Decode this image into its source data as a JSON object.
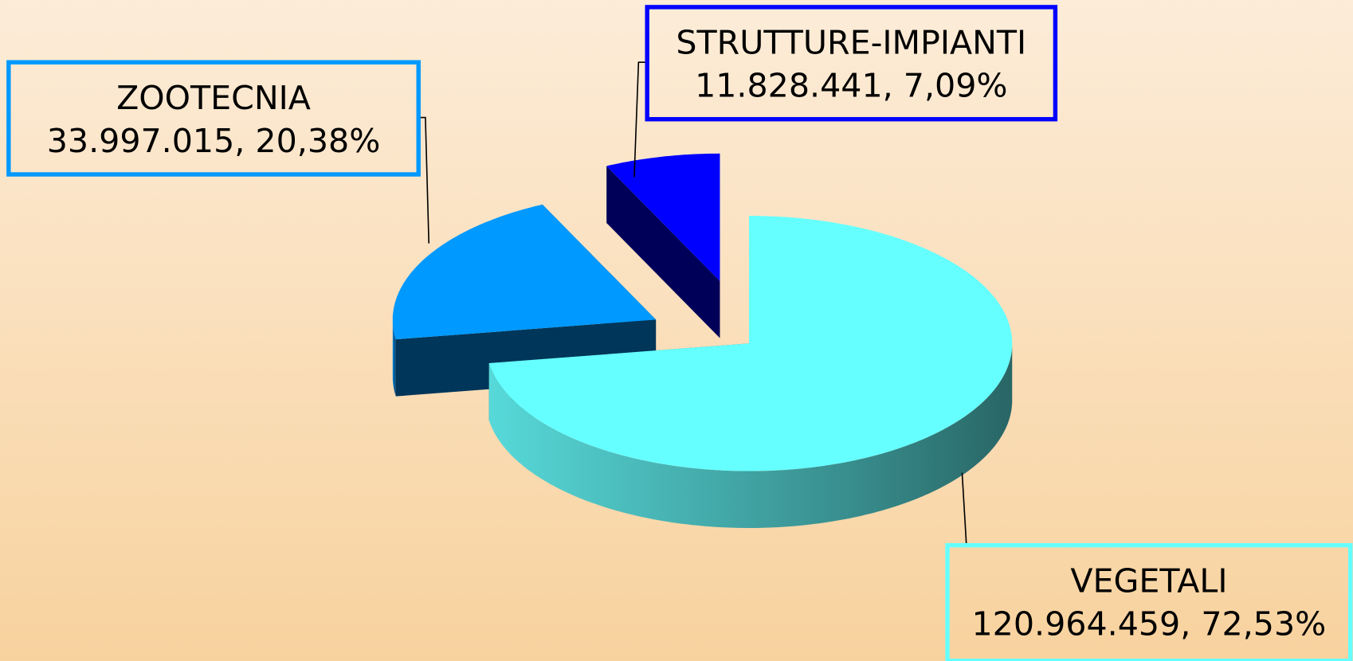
{
  "chart_data": {
    "type": "pie",
    "categories": [
      "VEGETALI",
      "ZOOTECNIA",
      "STRUTTURE-IMPIANTI"
    ],
    "values": [
      120964459,
      33997015,
      11828441
    ],
    "value_labels": [
      "120.964.459, 72,53%",
      "33.997.015, 20,38%",
      "11.828.441, 7,09%"
    ],
    "colors": [
      "#66ffff",
      "#0099ff",
      "#0000ff"
    ]
  }
}
